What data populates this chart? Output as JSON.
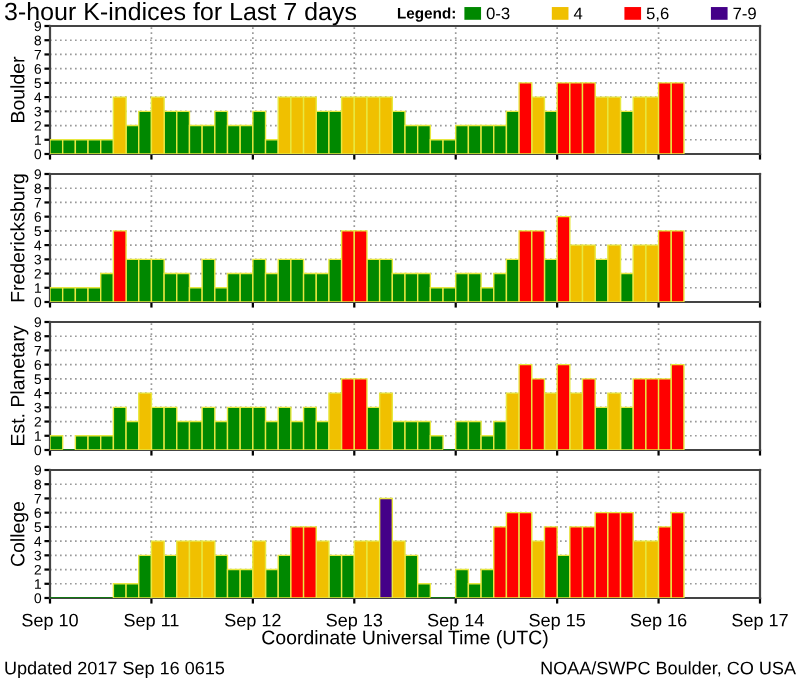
{
  "chart_data": [
    {
      "type": "bar",
      "title": "3-hour K-indices for Last 7 days",
      "ylabel": "Boulder",
      "legend_title": "Legend:",
      "legend": "top right",
      "grid": true,
      "tick_labels": "y",
      "x": [
        "2017-09-10T00:00",
        "2017-09-10T03:00",
        "2017-09-10T06:00",
        "2017-09-10T09:00",
        "2017-09-10T12:00",
        "2017-09-10T15:00",
        "2017-09-10T18:00",
        "2017-09-10T21:00",
        "2017-09-11T00:00",
        "2017-09-11T03:00",
        "2017-09-11T06:00",
        "2017-09-11T09:00",
        "2017-09-11T12:00",
        "2017-09-11T15:00",
        "2017-09-11T18:00",
        "2017-09-11T21:00",
        "2017-09-12T00:00",
        "2017-09-12T03:00",
        "2017-09-12T06:00",
        "2017-09-12T09:00",
        "2017-09-12T12:00",
        "2017-09-12T15:00",
        "2017-09-12T18:00",
        "2017-09-12T21:00",
        "2017-09-13T00:00",
        "2017-09-13T03:00",
        "2017-09-13T06:00",
        "2017-09-13T09:00",
        "2017-09-13T12:00",
        "2017-09-13T15:00",
        "2017-09-13T18:00",
        "2017-09-13T21:00",
        "2017-09-14T00:00",
        "2017-09-14T03:00",
        "2017-09-14T06:00",
        "2017-09-14T09:00",
        "2017-09-14T12:00",
        "2017-09-14T15:00",
        "2017-09-14T18:00",
        "2017-09-14T21:00",
        "2017-09-15T00:00",
        "2017-09-15T03:00",
        "2017-09-15T06:00",
        "2017-09-15T09:00",
        "2017-09-15T12:00",
        "2017-09-15T15:00",
        "2017-09-15T18:00",
        "2017-09-15T21:00",
        "2017-09-16T00:00",
        "2017-09-16T03:00"
      ],
      "xlim": [
        "2017-09-10",
        "2017-09-17"
      ],
      "ylim": [
        0,
        9
      ],
      "yticks": [
        0,
        1,
        2,
        3,
        4,
        5,
        6,
        7,
        8,
        9
      ],
      "series": [
        {
          "name": "0-3",
          "color": "#008800",
          "values": [
            1,
            1,
            1,
            1,
            1,
            null,
            2,
            3,
            null,
            3,
            3,
            2,
            2,
            3,
            2,
            2,
            3,
            1,
            null,
            null,
            null,
            3,
            3,
            null,
            null,
            null,
            null,
            3,
            2,
            2,
            1,
            1,
            2,
            2,
            2,
            2,
            3,
            null,
            null,
            3,
            null,
            null,
            null,
            null,
            null,
            3,
            null,
            null,
            null,
            null
          ]
        },
        {
          "name": "4",
          "color": "#f0c000",
          "values": [
            null,
            null,
            null,
            null,
            null,
            4,
            null,
            null,
            4,
            null,
            null,
            null,
            null,
            null,
            null,
            null,
            null,
            null,
            4,
            4,
            4,
            null,
            null,
            4,
            4,
            4,
            4,
            null,
            null,
            null,
            null,
            null,
            null,
            null,
            null,
            null,
            null,
            null,
            4,
            null,
            null,
            null,
            null,
            4,
            4,
            null,
            4,
            4,
            null,
            null
          ]
        },
        {
          "name": "5,6",
          "color": "#ff0000",
          "values": [
            null,
            null,
            null,
            null,
            null,
            null,
            null,
            null,
            null,
            null,
            null,
            null,
            null,
            null,
            null,
            null,
            null,
            null,
            null,
            null,
            null,
            null,
            null,
            null,
            null,
            null,
            null,
            null,
            null,
            null,
            null,
            null,
            null,
            null,
            null,
            null,
            null,
            5,
            null,
            null,
            5,
            5,
            5,
            null,
            null,
            null,
            null,
            null,
            5,
            5
          ]
        },
        {
          "name": "7-9",
          "color": "#440088",
          "values": [
            null,
            null,
            null,
            null,
            null,
            null,
            null,
            null,
            null,
            null,
            null,
            null,
            null,
            null,
            null,
            null,
            null,
            null,
            null,
            null,
            null,
            null,
            null,
            null,
            null,
            null,
            null,
            null,
            null,
            null,
            null,
            null,
            null,
            null,
            null,
            null,
            null,
            null,
            null,
            null,
            null,
            null,
            null,
            null,
            null,
            null,
            null,
            null,
            null,
            null
          ]
        }
      ]
    },
    {
      "type": "bar",
      "ylabel": "Fredericksburg",
      "grid": true,
      "tick_labels": "y",
      "x": [
        "2017-09-10T00:00",
        "2017-09-10T03:00",
        "2017-09-10T06:00",
        "2017-09-10T09:00",
        "2017-09-10T12:00",
        "2017-09-10T15:00",
        "2017-09-10T18:00",
        "2017-09-10T21:00",
        "2017-09-11T00:00",
        "2017-09-11T03:00",
        "2017-09-11T06:00",
        "2017-09-11T09:00",
        "2017-09-11T12:00",
        "2017-09-11T15:00",
        "2017-09-11T18:00",
        "2017-09-11T21:00",
        "2017-09-12T00:00",
        "2017-09-12T03:00",
        "2017-09-12T06:00",
        "2017-09-12T09:00",
        "2017-09-12T12:00",
        "2017-09-12T15:00",
        "2017-09-12T18:00",
        "2017-09-12T21:00",
        "2017-09-13T00:00",
        "2017-09-13T03:00",
        "2017-09-13T06:00",
        "2017-09-13T09:00",
        "2017-09-13T12:00",
        "2017-09-13T15:00",
        "2017-09-13T18:00",
        "2017-09-13T21:00",
        "2017-09-14T00:00",
        "2017-09-14T03:00",
        "2017-09-14T06:00",
        "2017-09-14T09:00",
        "2017-09-14T12:00",
        "2017-09-14T15:00",
        "2017-09-14T18:00",
        "2017-09-14T21:00",
        "2017-09-15T00:00",
        "2017-09-15T03:00",
        "2017-09-15T06:00",
        "2017-09-15T09:00",
        "2017-09-15T12:00",
        "2017-09-15T15:00",
        "2017-09-15T18:00",
        "2017-09-15T21:00",
        "2017-09-16T00:00",
        "2017-09-16T03:00"
      ],
      "xlim": [
        "2017-09-10",
        "2017-09-17"
      ],
      "ylim": [
        0,
        9
      ],
      "yticks": [
        0,
        1,
        2,
        3,
        4,
        5,
        6,
        7,
        8,
        9
      ],
      "series": [
        {
          "color": "#008800",
          "values": [
            1,
            1,
            1,
            1,
            2,
            null,
            3,
            3,
            3,
            2,
            2,
            1,
            3,
            1,
            2,
            2,
            3,
            2,
            3,
            3,
            2,
            2,
            3,
            null,
            null,
            3,
            3,
            2,
            2,
            2,
            1,
            1,
            2,
            2,
            1,
            2,
            3,
            null,
            null,
            3,
            null,
            null,
            null,
            3,
            null,
            2,
            null,
            null,
            null,
            null
          ]
        },
        {
          "color": "#f0c000",
          "values": [
            null,
            null,
            null,
            null,
            null,
            null,
            null,
            null,
            null,
            null,
            null,
            null,
            null,
            null,
            null,
            null,
            null,
            null,
            null,
            null,
            null,
            null,
            null,
            null,
            null,
            null,
            null,
            null,
            null,
            null,
            null,
            null,
            null,
            null,
            null,
            null,
            null,
            null,
            null,
            null,
            null,
            4,
            4,
            null,
            4,
            null,
            4,
            4,
            null,
            null
          ]
        },
        {
          "color": "#ff0000",
          "values": [
            null,
            null,
            null,
            null,
            null,
            5,
            null,
            null,
            null,
            null,
            null,
            null,
            null,
            null,
            null,
            null,
            null,
            null,
            null,
            null,
            null,
            null,
            null,
            5,
            5,
            null,
            null,
            null,
            null,
            null,
            null,
            null,
            null,
            null,
            null,
            null,
            null,
            5,
            5,
            null,
            6,
            null,
            null,
            null,
            null,
            null,
            null,
            null,
            5,
            5
          ]
        }
      ]
    },
    {
      "type": "bar",
      "ylabel": "Est. Planetary",
      "grid": true,
      "tick_labels": "y",
      "x": [
        "2017-09-10T00:00",
        "2017-09-10T03:00",
        "2017-09-10T06:00",
        "2017-09-10T09:00",
        "2017-09-10T12:00",
        "2017-09-10T15:00",
        "2017-09-10T18:00",
        "2017-09-10T21:00",
        "2017-09-11T00:00",
        "2017-09-11T03:00",
        "2017-09-11T06:00",
        "2017-09-11T09:00",
        "2017-09-11T12:00",
        "2017-09-11T15:00",
        "2017-09-11T18:00",
        "2017-09-11T21:00",
        "2017-09-12T00:00",
        "2017-09-12T03:00",
        "2017-09-12T06:00",
        "2017-09-12T09:00",
        "2017-09-12T12:00",
        "2017-09-12T15:00",
        "2017-09-12T18:00",
        "2017-09-12T21:00",
        "2017-09-13T00:00",
        "2017-09-13T03:00",
        "2017-09-13T06:00",
        "2017-09-13T09:00",
        "2017-09-13T12:00",
        "2017-09-13T15:00",
        "2017-09-13T18:00",
        "2017-09-13T21:00",
        "2017-09-14T00:00",
        "2017-09-14T03:00",
        "2017-09-14T06:00",
        "2017-09-14T09:00",
        "2017-09-14T12:00",
        "2017-09-14T15:00",
        "2017-09-14T18:00",
        "2017-09-14T21:00",
        "2017-09-15T00:00",
        "2017-09-15T03:00",
        "2017-09-15T06:00",
        "2017-09-15T09:00",
        "2017-09-15T12:00",
        "2017-09-15T15:00",
        "2017-09-15T18:00",
        "2017-09-15T21:00",
        "2017-09-16T00:00",
        "2017-09-16T03:00"
      ],
      "xlim": [
        "2017-09-10",
        "2017-09-17"
      ],
      "ylim": [
        0,
        9
      ],
      "yticks": [
        0,
        1,
        2,
        3,
        4,
        5,
        6,
        7,
        8,
        9
      ],
      "series": [
        {
          "color": "#008800",
          "values": [
            1,
            0,
            1,
            1,
            1,
            3,
            2,
            null,
            3,
            3,
            2,
            2,
            3,
            2,
            3,
            3,
            3,
            2,
            3,
            2,
            3,
            2,
            null,
            null,
            null,
            3,
            null,
            2,
            2,
            2,
            1,
            0,
            2,
            2,
            1,
            2,
            null,
            null,
            null,
            null,
            null,
            null,
            null,
            3,
            null,
            3,
            null,
            null,
            null,
            null
          ]
        },
        {
          "color": "#f0c000",
          "values": [
            null,
            null,
            null,
            null,
            null,
            null,
            null,
            4,
            null,
            null,
            null,
            null,
            null,
            null,
            null,
            null,
            null,
            null,
            null,
            null,
            null,
            null,
            4,
            null,
            null,
            null,
            4,
            null,
            null,
            null,
            null,
            null,
            null,
            null,
            null,
            null,
            4,
            null,
            null,
            4,
            null,
            4,
            null,
            null,
            4,
            null,
            null,
            null,
            null,
            null
          ]
        },
        {
          "color": "#ff0000",
          "values": [
            null,
            null,
            null,
            null,
            null,
            null,
            null,
            null,
            null,
            null,
            null,
            null,
            null,
            null,
            null,
            null,
            null,
            null,
            null,
            null,
            null,
            null,
            null,
            5,
            5,
            null,
            null,
            null,
            null,
            null,
            null,
            null,
            null,
            null,
            null,
            null,
            null,
            6,
            5,
            null,
            6,
            null,
            5,
            null,
            null,
            null,
            5,
            5,
            5,
            6
          ]
        }
      ]
    },
    {
      "type": "bar",
      "ylabel": "College",
      "xlabel": "Coordinate Universal Time (UTC)",
      "grid": true,
      "annotations": [
        "Updated 2017 Sep 16 0615",
        "NOAA/SWPC Boulder, CO USA"
      ],
      "x": [
        "2017-09-10T00:00",
        "2017-09-10T03:00",
        "2017-09-10T06:00",
        "2017-09-10T09:00",
        "2017-09-10T12:00",
        "2017-09-10T15:00",
        "2017-09-10T18:00",
        "2017-09-10T21:00",
        "2017-09-11T00:00",
        "2017-09-11T03:00",
        "2017-09-11T06:00",
        "2017-09-11T09:00",
        "2017-09-11T12:00",
        "2017-09-11T15:00",
        "2017-09-11T18:00",
        "2017-09-11T21:00",
        "2017-09-12T00:00",
        "2017-09-12T03:00",
        "2017-09-12T06:00",
        "2017-09-12T09:00",
        "2017-09-12T12:00",
        "2017-09-12T15:00",
        "2017-09-12T18:00",
        "2017-09-12T21:00",
        "2017-09-13T00:00",
        "2017-09-13T03:00",
        "2017-09-13T06:00",
        "2017-09-13T09:00",
        "2017-09-13T12:00",
        "2017-09-13T15:00",
        "2017-09-13T18:00",
        "2017-09-13T21:00",
        "2017-09-14T00:00",
        "2017-09-14T03:00",
        "2017-09-14T06:00",
        "2017-09-14T09:00",
        "2017-09-14T12:00",
        "2017-09-14T15:00",
        "2017-09-14T18:00",
        "2017-09-14T21:00",
        "2017-09-15T00:00",
        "2017-09-15T03:00",
        "2017-09-15T06:00",
        "2017-09-15T09:00",
        "2017-09-15T12:00",
        "2017-09-15T15:00",
        "2017-09-15T18:00",
        "2017-09-15T21:00",
        "2017-09-16T00:00",
        "2017-09-16T03:00"
      ],
      "xlim": [
        "2017-09-10",
        "2017-09-17"
      ],
      "ylim": [
        0,
        9
      ],
      "yticks": [
        0,
        1,
        2,
        3,
        4,
        5,
        6,
        7,
        8,
        9
      ],
      "xticks": [
        {
          "value": "2017-09-10",
          "label": "Sep 10"
        },
        {
          "value": "2017-09-11",
          "label": "Sep 11"
        },
        {
          "value": "2017-09-12",
          "label": "Sep 12"
        },
        {
          "value": "2017-09-13",
          "label": "Sep 13"
        },
        {
          "value": "2017-09-14",
          "label": "Sep 14"
        },
        {
          "value": "2017-09-15",
          "label": "Sep 15"
        },
        {
          "value": "2017-09-16",
          "label": "Sep 16"
        },
        {
          "value": "2017-09-17",
          "label": "Sep 17"
        }
      ],
      "series": [
        {
          "color": "#008800",
          "values": [
            0,
            0,
            0,
            0,
            0,
            1,
            1,
            3,
            null,
            3,
            null,
            null,
            null,
            3,
            2,
            2,
            null,
            2,
            3,
            null,
            null,
            null,
            3,
            3,
            null,
            null,
            null,
            null,
            3,
            1,
            0,
            0,
            2,
            1,
            2,
            null,
            null,
            null,
            null,
            null,
            3,
            null,
            null,
            null,
            null,
            null,
            null,
            null,
            null,
            null
          ]
        },
        {
          "color": "#f0c000",
          "values": [
            null,
            null,
            null,
            null,
            null,
            null,
            null,
            null,
            4,
            null,
            4,
            4,
            4,
            null,
            null,
            null,
            4,
            null,
            null,
            null,
            null,
            4,
            null,
            null,
            4,
            4,
            null,
            4,
            null,
            null,
            null,
            null,
            null,
            null,
            null,
            null,
            null,
            null,
            4,
            null,
            null,
            null,
            null,
            null,
            null,
            null,
            4,
            4,
            null,
            null
          ]
        },
        {
          "color": "#ff0000",
          "values": [
            null,
            null,
            null,
            null,
            null,
            null,
            null,
            null,
            null,
            null,
            null,
            null,
            null,
            null,
            null,
            null,
            null,
            null,
            null,
            5,
            5,
            null,
            null,
            null,
            null,
            null,
            null,
            null,
            null,
            null,
            null,
            null,
            null,
            null,
            null,
            5,
            6,
            6,
            null,
            5,
            null,
            5,
            5,
            6,
            6,
            6,
            null,
            null,
            5,
            6
          ]
        },
        {
          "color": "#440088",
          "values": [
            null,
            null,
            null,
            null,
            null,
            null,
            null,
            null,
            null,
            null,
            null,
            null,
            null,
            null,
            null,
            null,
            null,
            null,
            null,
            null,
            null,
            null,
            null,
            null,
            null,
            null,
            7,
            null,
            null,
            null,
            null,
            null,
            null,
            null,
            null,
            null,
            null,
            null,
            null,
            null,
            null,
            null,
            null,
            null,
            null,
            null,
            null,
            null,
            null,
            null
          ]
        }
      ]
    }
  ]
}
